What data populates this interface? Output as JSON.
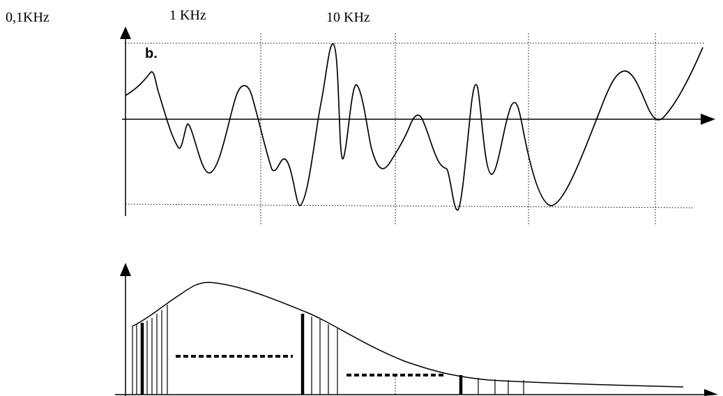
{
  "frequency_labels": {
    "f1": "0,1KHz",
    "f2": "1 KHz",
    "f3": "10 KHz"
  },
  "panel_label": "b.",
  "colors": {
    "ink": "#000000",
    "background": "#ffffff"
  },
  "top_panel": {
    "description_icon": "arrow-icon",
    "grid_style": "dotted"
  },
  "bottom_panel": {
    "description_icon": "arrow-icon",
    "grid_style": "dotted"
  }
}
